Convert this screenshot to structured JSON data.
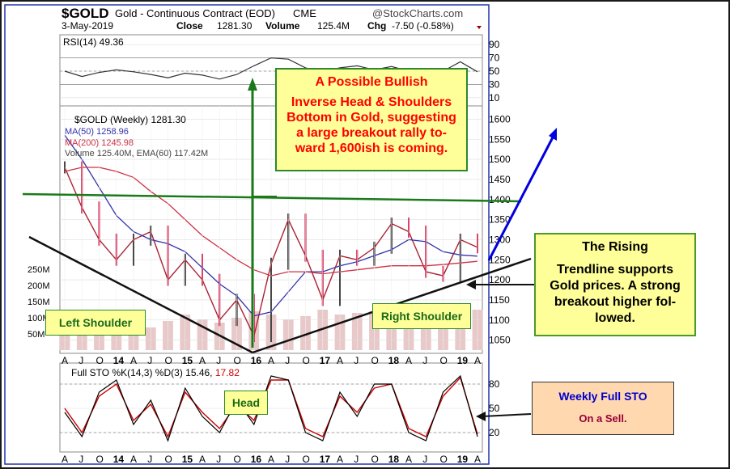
{
  "header": {
    "symbol": "$GOLD",
    "name": "Gold - Continuous Contract (EOD)",
    "exchange": "CME",
    "brand": "@StockCharts.com",
    "date": "3-May-2019",
    "close_label": "Close",
    "close_value": "1281.30",
    "volume_label": "Volume",
    "volume_value": "125.4M",
    "chg_label": "Chg",
    "chg_value": "-7.50 (-0.58%)"
  },
  "colors": {
    "price_up": "#000000",
    "price_down": "#cc0033",
    "ma50": "#3333aa",
    "ma200": "#cc3344",
    "volume": "#e8c8c8",
    "trend_green": "#1a7a1a",
    "trend_blue": "#0000dd",
    "stoch_k": "#000000",
    "stoch_d": "#cc0000",
    "note_fill": "#ffff99",
    "note_red_text": "#ff0000",
    "label_fill": "#ffff99",
    "sto_note_fill": "#ffd8b0",
    "sto_note_text": "#0000cc",
    "sto_note_text2": "#990033"
  },
  "legend": {
    "rsi": "RSI(14) 49.36",
    "price": "$GOLD (Weekly) 1281.30",
    "ma50": "MA(50) 1258.96",
    "ma200": "MA(200) 1245.98",
    "volume": "Volume 125.40M, EMA(60) 117.42M",
    "sto_prefix": "Full STO %K(14,3) %D(3)",
    "sto_k": "15.46,",
    "sto_d": "17.82"
  },
  "annotations": {
    "bullish_title": "A Possible Bullish",
    "bullish_body": "Inverse Head & Shoulders Bottom in Gold, suggesting a large breakout rally to-ward 1,600ish is coming.",
    "rising_title": "The Rising",
    "rising_body": "Trendline supports Gold prices. A strong breakout higher fol-lowed.",
    "left_shoulder": "Left Shoulder",
    "right_shoulder": "Right Shoulder",
    "head": "Head",
    "sto_title": "Weekly Full STO",
    "sto_sub": "On a Sell."
  },
  "chart_data": [
    {
      "type": "line",
      "name": "RSI",
      "yticks": [
        10,
        30,
        50,
        70,
        90
      ],
      "ylim": [
        0,
        100
      ],
      "x": [
        "2013-04",
        "2013-07",
        "2013-10",
        "2014-01",
        "2014-04",
        "2014-07",
        "2014-10",
        "2015-01",
        "2015-04",
        "2015-07",
        "2015-10",
        "2016-01",
        "2016-04",
        "2016-07",
        "2016-10",
        "2017-01",
        "2017-04",
        "2017-07",
        "2017-10",
        "2018-01",
        "2018-04",
        "2018-07",
        "2018-10",
        "2019-01",
        "2019-04"
      ],
      "values": [
        50,
        42,
        48,
        52,
        49,
        45,
        40,
        47,
        44,
        38,
        45,
        58,
        70,
        68,
        55,
        48,
        55,
        58,
        52,
        57,
        50,
        38,
        50,
        64,
        49
      ]
    },
    {
      "type": "line",
      "name": "price",
      "yticks": [
        1050,
        1100,
        1150,
        1200,
        1250,
        1300,
        1350,
        1400,
        1450,
        1500,
        1550,
        1600
      ],
      "ylim": [
        1025,
        1625
      ],
      "x": [
        "2013-04",
        "2013-07",
        "2013-10",
        "2014-01",
        "2014-04",
        "2014-07",
        "2014-10",
        "2015-01",
        "2015-04",
        "2015-07",
        "2015-10",
        "2016-01",
        "2016-04",
        "2016-07",
        "2016-10",
        "2017-01",
        "2017-04",
        "2017-07",
        "2017-10",
        "2018-01",
        "2018-04",
        "2018-07",
        "2018-10",
        "2019-01",
        "2019-04"
      ],
      "close": [
        1480,
        1380,
        1300,
        1250,
        1300,
        1320,
        1200,
        1250,
        1200,
        1100,
        1150,
        1060,
        1240,
        1350,
        1260,
        1150,
        1260,
        1250,
        1280,
        1340,
        1320,
        1220,
        1210,
        1300,
        1281
      ],
      "ma50": [
        1560,
        1500,
        1430,
        1360,
        1320,
        1300,
        1290,
        1270,
        1230,
        1190,
        1160,
        1110,
        1120,
        1170,
        1220,
        1220,
        1235,
        1245,
        1260,
        1275,
        1300,
        1295,
        1270,
        1262,
        1259
      ],
      "ma200": [
        1470,
        1480,
        1480,
        1470,
        1455,
        1420,
        1390,
        1350,
        1310,
        1280,
        1250,
        1225,
        1210,
        1220,
        1220,
        1215,
        1220,
        1225,
        1230,
        1235,
        1235,
        1235,
        1238,
        1242,
        1246
      ],
      "volume_m": [
        60,
        90,
        70,
        80,
        65,
        70,
        90,
        110,
        95,
        85,
        100,
        120,
        110,
        95,
        105,
        125,
        110,
        115,
        120,
        130,
        135,
        120,
        140,
        130,
        125
      ],
      "volume_ticks": [
        "50M",
        "100M",
        "150M",
        "200M",
        "250M"
      ],
      "xticks": [
        "A",
        "J",
        "O",
        "14",
        "A",
        "J",
        "O",
        "15",
        "A",
        "J",
        "O",
        "16",
        "A",
        "J",
        "O",
        "17",
        "A",
        "J",
        "O",
        "18",
        "A",
        "J",
        "O",
        "19",
        "A"
      ]
    },
    {
      "type": "line",
      "name": "stochastic",
      "yticks": [
        20,
        50,
        80
      ],
      "ylim": [
        0,
        100
      ],
      "x": [
        "2013-04",
        "2013-07",
        "2013-10",
        "2014-01",
        "2014-04",
        "2014-07",
        "2014-10",
        "2015-01",
        "2015-04",
        "2015-07",
        "2015-10",
        "2016-01",
        "2016-04",
        "2016-07",
        "2016-10",
        "2017-01",
        "2017-04",
        "2017-07",
        "2017-10",
        "2018-01",
        "2018-04",
        "2018-07",
        "2018-10",
        "2019-01",
        "2019-04"
      ],
      "k": [
        45,
        15,
        70,
        85,
        30,
        60,
        10,
        75,
        40,
        20,
        60,
        30,
        90,
        85,
        20,
        10,
        70,
        40,
        80,
        80,
        20,
        10,
        70,
        90,
        15
      ],
      "d": [
        50,
        20,
        65,
        80,
        35,
        55,
        15,
        70,
        45,
        25,
        55,
        35,
        85,
        85,
        25,
        15,
        65,
        45,
        75,
        80,
        25,
        15,
        65,
        88,
        18
      ],
      "xticks": [
        "A",
        "J",
        "O",
        "14",
        "A",
        "J",
        "O",
        "15",
        "A",
        "J",
        "O",
        "16",
        "A",
        "J",
        "O",
        "17",
        "A",
        "J",
        "O",
        "18",
        "A",
        "J",
        "O",
        "19",
        "A"
      ]
    }
  ]
}
